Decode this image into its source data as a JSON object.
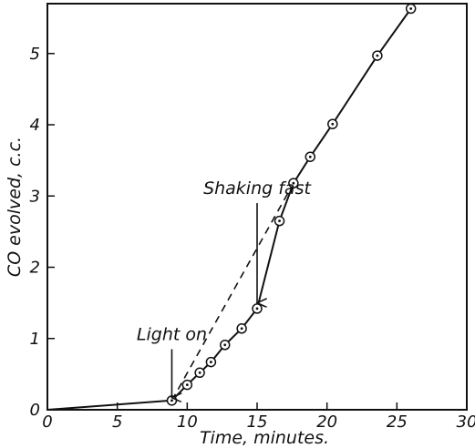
{
  "chart_data": {
    "type": "line",
    "title": "",
    "xlabel": "Time, minutes.",
    "ylabel": "CO evolved, c.c.",
    "xlim": [
      0,
      30
    ],
    "ylim": [
      0,
      5.7
    ],
    "x_ticks": [
      0,
      5,
      10,
      15,
      20,
      25,
      30
    ],
    "x_tick_labels": [
      "0",
      "5",
      "10",
      "15",
      "20",
      "25",
      "30"
    ],
    "y_ticks": [
      0,
      1,
      2,
      3,
      4,
      5
    ],
    "y_tick_labels": [
      "0",
      "1",
      "2",
      "3",
      "4",
      "5"
    ],
    "grid": false,
    "series": [
      {
        "style": "solid",
        "markers": "circled-dot",
        "points": [
          {
            "x": 0,
            "y": 0.0,
            "marker": false
          },
          {
            "x": 8.9,
            "y": 0.13,
            "marker": true
          },
          {
            "x": 10.0,
            "y": 0.35,
            "marker": true
          },
          {
            "x": 10.9,
            "y": 0.52,
            "marker": true
          },
          {
            "x": 11.7,
            "y": 0.67,
            "marker": true
          },
          {
            "x": 12.7,
            "y": 0.91,
            "marker": true
          },
          {
            "x": 13.9,
            "y": 1.14,
            "marker": true
          },
          {
            "x": 15.0,
            "y": 1.42,
            "marker": true
          },
          {
            "x": 16.6,
            "y": 2.65,
            "marker": true
          },
          {
            "x": 17.6,
            "y": 3.18,
            "marker": true
          },
          {
            "x": 18.8,
            "y": 3.55,
            "marker": true
          },
          {
            "x": 20.4,
            "y": 4.01,
            "marker": true
          },
          {
            "x": 23.6,
            "y": 4.97,
            "marker": true
          },
          {
            "x": 26.0,
            "y": 5.63,
            "marker": true
          }
        ]
      },
      {
        "style": "dashed",
        "markers": "none",
        "points": [
          {
            "x": 8.9,
            "y": 0.13
          },
          {
            "x": 17.6,
            "y": 3.18
          }
        ]
      }
    ],
    "annotations": [
      {
        "text": "Light on",
        "arrow_x": 8.9,
        "arrow_from_y": 0.85,
        "arrow_to_y": 0.17
      },
      {
        "text": "Shaking fast",
        "arrow_x": 15.0,
        "arrow_from_y": 2.9,
        "arrow_to_y": 1.5
      }
    ]
  }
}
